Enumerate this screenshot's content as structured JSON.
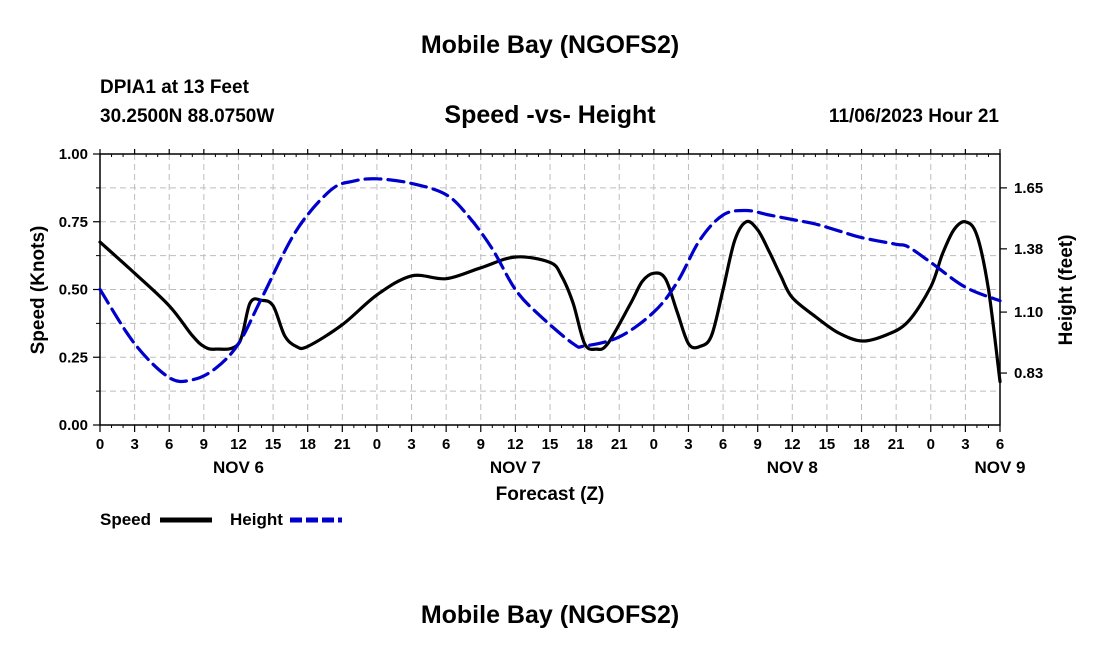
{
  "header": {
    "title": "Mobile Bay (NGOFS2)",
    "station": "DPIA1 at 13 Feet",
    "coords": "30.2500N  88.0750W",
    "subtitle": "Speed -vs- Height",
    "date": "11/06/2023 Hour 21"
  },
  "footer": {
    "title": "Mobile Bay (NGOFS2)"
  },
  "chart_data": {
    "type": "line",
    "xlabel": "Forecast (Z)",
    "ylabel_left": "Speed (Knots)",
    "ylabel_right": "Height (feet)",
    "x_range_hours": [
      0,
      78
    ],
    "x_tick_labels": [
      "0",
      "3",
      "6",
      "9",
      "12",
      "15",
      "18",
      "21",
      "0",
      "3",
      "6",
      "9",
      "12",
      "15",
      "18",
      "21",
      "0",
      "3",
      "6",
      "9",
      "12",
      "15",
      "18",
      "21",
      "0",
      "3",
      "6"
    ],
    "day_labels": [
      {
        "hour": 12,
        "label": "NOV 6"
      },
      {
        "hour": 36,
        "label": "NOV 7"
      },
      {
        "hour": 60,
        "label": "NOV 8"
      },
      {
        "hour": 78,
        "label": "NOV 9"
      }
    ],
    "y_left": {
      "range": [
        0,
        1.0
      ],
      "ticks": [
        0,
        0.25,
        0.5,
        0.75,
        1.0
      ],
      "tick_labels": [
        "0.00",
        "0.25",
        "0.50",
        "0.75",
        "1.00"
      ]
    },
    "y_right": {
      "range": [
        0.6,
        1.8
      ],
      "ticks": [
        0.83,
        1.1,
        1.38,
        1.65
      ],
      "tick_labels": [
        "0.83",
        "1.10",
        "1.38",
        "1.65"
      ]
    },
    "grid": true,
    "legend_position": "bottom-left",
    "series": [
      {
        "name": "Speed",
        "axis": "left",
        "color": "#000000",
        "style": "solid",
        "x": [
          0,
          3,
          6,
          8,
          9,
          10,
          12,
          13,
          14,
          15,
          16,
          17,
          18,
          21,
          24,
          27,
          30,
          33,
          36,
          39,
          40,
          41,
          42,
          43,
          44,
          46,
          47,
          48,
          49,
          50,
          51,
          52,
          53,
          54,
          55,
          56,
          57,
          58,
          59,
          60,
          62,
          64,
          66,
          68,
          70,
          72,
          73,
          74,
          75,
          76,
          77,
          78
        ],
        "y": [
          0.675,
          0.56,
          0.44,
          0.33,
          0.29,
          0.28,
          0.3,
          0.45,
          0.46,
          0.44,
          0.33,
          0.29,
          0.29,
          0.37,
          0.48,
          0.55,
          0.54,
          0.58,
          0.62,
          0.6,
          0.55,
          0.45,
          0.3,
          0.28,
          0.3,
          0.45,
          0.53,
          0.56,
          0.54,
          0.42,
          0.3,
          0.29,
          0.33,
          0.5,
          0.68,
          0.75,
          0.72,
          0.64,
          0.55,
          0.47,
          0.4,
          0.34,
          0.31,
          0.33,
          0.38,
          0.51,
          0.63,
          0.72,
          0.75,
          0.7,
          0.5,
          0.16
        ]
      },
      {
        "name": "Height",
        "axis": "right",
        "color": "#0000cc",
        "style": "dashed",
        "x": [
          0,
          3,
          6,
          8,
          10,
          12,
          14,
          17,
          20,
          22,
          24,
          27,
          30,
          32,
          34,
          36,
          38,
          41,
          42,
          45,
          48,
          50,
          52,
          54,
          56,
          58,
          60,
          62,
          64,
          66,
          69,
          70,
          72,
          75,
          78
        ],
        "y": [
          1.2,
          0.96,
          0.81,
          0.8,
          0.85,
          0.96,
          1.16,
          1.46,
          1.64,
          1.68,
          1.69,
          1.67,
          1.62,
          1.52,
          1.38,
          1.2,
          1.09,
          0.96,
          0.95,
          0.99,
          1.1,
          1.23,
          1.42,
          1.53,
          1.55,
          1.53,
          1.51,
          1.49,
          1.46,
          1.43,
          1.4,
          1.39,
          1.32,
          1.21,
          1.15
        ]
      }
    ]
  }
}
